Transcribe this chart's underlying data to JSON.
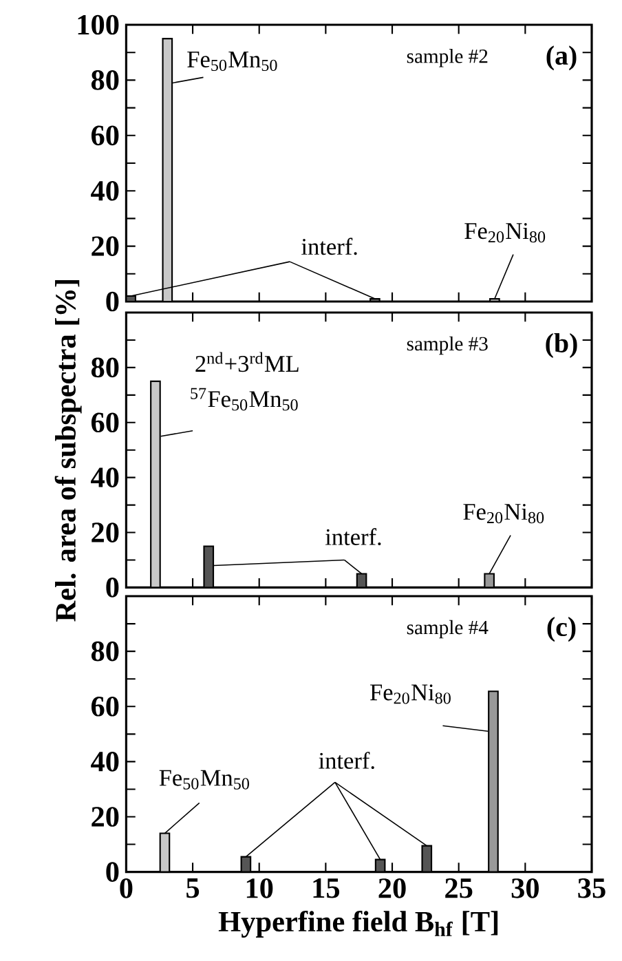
{
  "chart_data": [
    {
      "type": "bar",
      "xlim": [
        0,
        35
      ],
      "ylim": [
        0,
        100
      ],
      "xticks": [
        0,
        5,
        10,
        15,
        20,
        25,
        30,
        35
      ],
      "yticks": [
        0,
        {
          "value": 10,
          "label": null
        },
        20,
        {
          "value": 30,
          "label": null
        },
        40,
        {
          "value": 50,
          "label": null
        },
        60,
        {
          "value": 70,
          "label": null
        },
        80,
        {
          "value": 90,
          "label": null
        },
        100
      ],
      "tick_labels": "y",
      "annotations": [
        "sample #2",
        "(a)"
      ],
      "series": [
        {
          "name": "Fe$_{50}$Mn$_{50}$",
          "color": "#c8c8c8",
          "x": [
            3.1
          ],
          "values": [
            95
          ]
        },
        {
          "name": "interf.",
          "color": "#555555",
          "x": [
            0.35,
            18.7
          ],
          "values": [
            2,
            1
          ]
        },
        {
          "name": "Fe$_{20}$Ni$_{80}$",
          "color": "#999999",
          "x": [
            27.7
          ],
          "values": [
            1
          ]
        }
      ]
    },
    {
      "type": "bar",
      "xlim": [
        0,
        35
      ],
      "ylim": [
        0,
        100
      ],
      "xticks": [
        0,
        5,
        10,
        15,
        20,
        25,
        30,
        35
      ],
      "yticks": [
        0,
        {
          "value": 10,
          "label": null
        },
        20,
        {
          "value": 30,
          "label": null
        },
        40,
        {
          "value": 50,
          "label": null
        },
        60,
        {
          "value": 70,
          "label": null
        },
        80,
        {
          "value": 90,
          "label": null
        }
      ],
      "tick_labels": "y",
      "ylabel": "Rel. area of subspectra [%]",
      "annotations": [
        "sample #3",
        "(b)",
        "2$^{nd}$+3$^{rd}$ML"
      ],
      "series": [
        {
          "name": "$^{57}$Fe$_{50}$Mn$_{50}$",
          "color": "#c8c8c8",
          "x": [
            2.2
          ],
          "values": [
            75
          ]
        },
        {
          "name": "interf.",
          "color": "#555555",
          "x": [
            6.2,
            17.7
          ],
          "values": [
            15,
            5
          ]
        },
        {
          "name": "Fe$_{20}$Ni$_{80}$",
          "color": "#999999",
          "x": [
            27.3
          ],
          "values": [
            5
          ]
        }
      ]
    },
    {
      "type": "bar",
      "xlim": [
        0,
        35
      ],
      "ylim": [
        0,
        100
      ],
      "xticks": [
        0,
        5,
        10,
        15,
        20,
        25,
        30,
        35
      ],
      "yticks": [
        0,
        {
          "value": 10,
          "label": null
        },
        20,
        {
          "value": 30,
          "label": null
        },
        40,
        {
          "value": 50,
          "label": null
        },
        60,
        {
          "value": 70,
          "label": null
        },
        80,
        {
          "value": 90,
          "label": null
        }
      ],
      "xlabel": "Hyperfine field B$_{hf}$ [T]",
      "annotations": [
        "sample #4",
        "(c)"
      ],
      "series": [
        {
          "name": "Fe$_{50}$Mn$_{50}$",
          "color": "#c8c8c8",
          "x": [
            2.9
          ],
          "values": [
            14
          ]
        },
        {
          "name": "interf.",
          "color": "#555555",
          "x": [
            9.0,
            19.1,
            22.6
          ],
          "values": [
            5.5,
            4.5,
            9.5
          ]
        },
        {
          "name": "Fe$_{20}$Ni$_{80}$",
          "color": "#999999",
          "x": [
            27.6
          ],
          "values": [
            65.5
          ]
        }
      ]
    }
  ]
}
